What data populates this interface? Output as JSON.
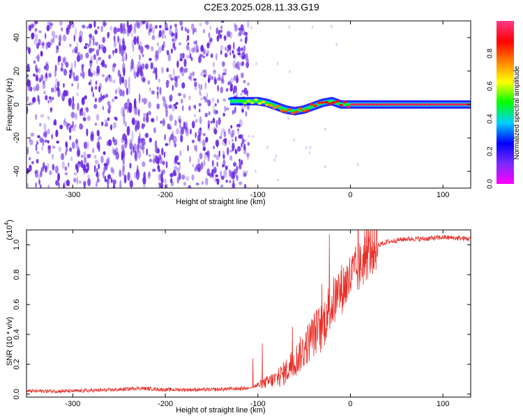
{
  "title": "C2E3.2025.028.11.33.G19",
  "colors": {
    "background": "#ffffff",
    "spectrogram_scatter": "#6a2be0",
    "snr_line": "#e8302a",
    "colorbar_stops": [
      "#ff00ff",
      "#7b2bff",
      "#0000ff",
      "#00d0ff",
      "#00ff00",
      "#ffff00",
      "#ff8000",
      "#ff0000",
      "#ff3a8a"
    ]
  },
  "chart_data": [
    {
      "type": "heatmap",
      "panel": "spectrogram",
      "xlabel": "Height of straight line (km)",
      "ylabel": "Frequency (Hz)",
      "xlim": [
        -350,
        130
      ],
      "ylim": [
        -50,
        50
      ],
      "xticks": [
        "-300",
        "-200",
        "-100",
        "0",
        "100"
      ],
      "xtick_values": [
        -300,
        -200,
        -100,
        0,
        100
      ],
      "yticks": [
        "-40",
        "-20",
        "0",
        "20",
        "40"
      ],
      "ytick_values": [
        -40,
        -20,
        0,
        20,
        40
      ],
      "colorbar": {
        "label": "Normalized spectral amplitude",
        "range": [
          0,
          1
        ],
        "ticks": [
          "0.0",
          "0.2",
          "0.4",
          "0.6",
          "0.8"
        ],
        "tick_values": [
          0.0,
          0.2,
          0.4,
          0.6,
          0.8
        ]
      },
      "noise_region_x": [
        -350,
        -110
      ],
      "signal_track": {
        "x": [
          -130,
          -120,
          -110,
          -100,
          -90,
          -80,
          -70,
          -60,
          -50,
          -40,
          -30,
          -20,
          -10,
          0,
          20,
          50,
          80,
          110,
          130
        ],
        "frequency": [
          2,
          2,
          2,
          2,
          1,
          -1,
          -3,
          -4,
          -3,
          -1,
          1,
          2,
          0,
          0,
          0,
          0,
          0,
          0,
          0
        ],
        "amplitude": [
          0.3,
          0.5,
          0.6,
          0.6,
          0.7,
          0.75,
          0.8,
          0.8,
          0.8,
          0.85,
          0.85,
          0.9,
          0.9,
          0.95,
          0.95,
          0.95,
          0.95,
          0.95,
          0.95
        ]
      }
    },
    {
      "type": "line",
      "panel": "snr",
      "xlabel": "Height of straight line (km)",
      "ylabel": "SNR (10 * v/v)",
      "yscale_label": "(x10",
      "yscale_exp": "4",
      "yscale_close": ")",
      "xlim": [
        -350,
        130
      ],
      "ylim": [
        -0.02,
        1.1
      ],
      "xticks": [
        "-300",
        "-200",
        "-100",
        "0",
        "100"
      ],
      "xtick_values": [
        -300,
        -200,
        -100,
        0,
        100
      ],
      "yticks": [
        "0.0",
        "0.2",
        "0.4",
        "0.6",
        "0.8",
        "1.0"
      ],
      "ytick_values": [
        0.0,
        0.2,
        0.4,
        0.6,
        0.8,
        1.0
      ],
      "series": [
        {
          "x": [
            -350,
            -300,
            -250,
            -230,
            -200,
            -150,
            -110,
            -100,
            -90,
            -80,
            -70,
            -60,
            -50,
            -40,
            -30,
            -25,
            -20,
            -10,
            -3,
            0,
            10,
            20,
            30,
            40,
            50,
            60,
            80,
            100,
            130
          ],
          "y": [
            0.02,
            0.02,
            0.03,
            0.04,
            0.03,
            0.03,
            0.04,
            0.06,
            0.08,
            0.1,
            0.15,
            0.22,
            0.3,
            0.4,
            0.45,
            0.55,
            0.6,
            0.7,
            0.75,
            0.78,
            0.85,
            0.95,
            1.0,
            1.02,
            1.03,
            1.04,
            1.04,
            1.05,
            1.04
          ]
        }
      ]
    }
  ]
}
